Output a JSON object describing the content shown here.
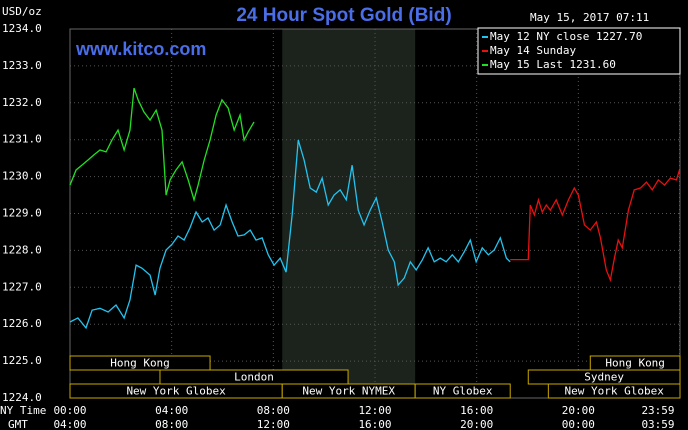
{
  "chart_data": {
    "type": "line",
    "title": "24 Hour Spot Gold (Bid)",
    "unit_label": "USD/oz",
    "timestamp": "May 15, 2017 07:11",
    "watermark": "www.kitco.com",
    "x_axis_label": "NY Time",
    "x2_axis_label": "GMT",
    "xlim": [
      0,
      24
    ],
    "ylim": [
      1224,
      1234
    ],
    "grid": true,
    "legend": "top-right",
    "xticks": [
      {
        "value": 0,
        "label": "00:00"
      },
      {
        "value": 4,
        "label": "04:00"
      },
      {
        "value": 8,
        "label": "08:00"
      },
      {
        "value": 12,
        "label": "12:00"
      },
      {
        "value": 16,
        "label": "16:00"
      },
      {
        "value": 20,
        "label": "20:00"
      },
      {
        "value": 23.98,
        "label": "23:59"
      }
    ],
    "x2ticks": [
      {
        "value": 0,
        "label": "04:00"
      },
      {
        "value": 4,
        "label": "08:00"
      },
      {
        "value": 8,
        "label": "12:00"
      },
      {
        "value": 12,
        "label": "16:00"
      },
      {
        "value": 16,
        "label": "20:00"
      },
      {
        "value": 20,
        "label": "00:00"
      },
      {
        "value": 23.98,
        "label": "03:59"
      }
    ],
    "yticks": [
      {
        "value": 1224,
        "label": "1224.0"
      },
      {
        "value": 1225,
        "label": "1225.0"
      },
      {
        "value": 1226,
        "label": "1226.0"
      },
      {
        "value": 1227,
        "label": "1227.0"
      },
      {
        "value": 1228,
        "label": "1228.0"
      },
      {
        "value": 1229,
        "label": "1229.0"
      },
      {
        "value": 1230,
        "label": "1230.0"
      },
      {
        "value": 1231,
        "label": "1231.0"
      },
      {
        "value": 1232,
        "label": "1232.0"
      },
      {
        "value": 1233,
        "label": "1233.0"
      },
      {
        "value": 1234,
        "label": "1234.0"
      }
    ],
    "series": [
      {
        "name": "May 12 NY close 1227.70",
        "color": "#22c4f0",
        "x": [
          0,
          0.31,
          0.63,
          0.87,
          1.18,
          1.5,
          1.81,
          2.13,
          2.36,
          2.6,
          2.83,
          3.15,
          3.35,
          3.54,
          3.78,
          4.02,
          4.25,
          4.49,
          4.72,
          4.96,
          5.2,
          5.43,
          5.67,
          5.91,
          6.14,
          6.38,
          6.61,
          6.85,
          7.09,
          7.32,
          7.56,
          7.8,
          8.03,
          8.27,
          8.5,
          8.74,
          8.98,
          9.21,
          9.45,
          9.69,
          9.92,
          10.16,
          10.39,
          10.63,
          10.87,
          11.1,
          11.34,
          11.57,
          11.81,
          12.05,
          12.28,
          12.52,
          12.76,
          12.91,
          13.15,
          13.39,
          13.62,
          13.86,
          14.09,
          14.33,
          14.57,
          14.8,
          15.04,
          15.28,
          15.51,
          15.75,
          15.98,
          16.22,
          16.46,
          16.69,
          16.93,
          17.17,
          17.32
        ],
        "values": [
          1226.06,
          1226.17,
          1225.9,
          1226.38,
          1226.43,
          1226.33,
          1226.52,
          1226.17,
          1226.66,
          1227.6,
          1227.52,
          1227.33,
          1226.79,
          1227.52,
          1228.01,
          1228.17,
          1228.39,
          1228.28,
          1228.61,
          1229.04,
          1228.77,
          1228.88,
          1228.55,
          1228.69,
          1229.23,
          1228.77,
          1228.39,
          1228.42,
          1228.55,
          1228.28,
          1228.34,
          1227.88,
          1227.6,
          1227.79,
          1227.41,
          1228.96,
          1230.99,
          1230.45,
          1229.69,
          1229.58,
          1229.96,
          1229.23,
          1229.5,
          1229.64,
          1229.37,
          1230.31,
          1229.09,
          1228.69,
          1229.09,
          1229.42,
          1228.77,
          1228.01,
          1227.69,
          1227.06,
          1227.25,
          1227.69,
          1227.47,
          1227.74,
          1228.07,
          1227.69,
          1227.79,
          1227.69,
          1227.88,
          1227.69,
          1227.96,
          1228.28,
          1227.69,
          1228.07,
          1227.88,
          1228.01,
          1228.34,
          1227.79,
          1227.69
        ]
      },
      {
        "name": "May 14 Sunday",
        "color": "#e81010",
        "x": [
          17.32,
          18.03,
          18.11,
          18.27,
          18.43,
          18.58,
          18.74,
          18.9,
          19.13,
          19.37,
          19.61,
          19.84,
          20,
          20.24,
          20.47,
          20.71,
          20.87,
          21.1,
          21.26,
          21.42,
          21.57,
          21.73,
          21.97,
          22.2,
          22.44,
          22.68,
          22.91,
          23.15,
          23.39,
          23.62,
          23.86,
          23.98
        ],
        "values": [
          1227.75,
          1227.75,
          1229.23,
          1228.96,
          1229.37,
          1229.04,
          1229.23,
          1229.09,
          1229.37,
          1228.96,
          1229.37,
          1229.69,
          1229.5,
          1228.69,
          1228.55,
          1228.77,
          1228.34,
          1227.47,
          1227.2,
          1227.79,
          1228.28,
          1228.07,
          1229.09,
          1229.64,
          1229.69,
          1229.85,
          1229.64,
          1229.91,
          1229.77,
          1229.96,
          1229.91,
          1230.18
        ]
      },
      {
        "name": "May 15 Last 1231.60",
        "color": "#22e022",
        "x": [
          0,
          0.24,
          0.47,
          0.71,
          0.94,
          1.18,
          1.42,
          1.65,
          1.89,
          2.13,
          2.36,
          2.52,
          2.68,
          2.91,
          3.15,
          3.39,
          3.62,
          3.78,
          3.94,
          4.17,
          4.41,
          4.65,
          4.88,
          5.04,
          5.28,
          5.51,
          5.75,
          5.98,
          6.22,
          6.46,
          6.69,
          6.85,
          7.01,
          7.24
        ],
        "values": [
          1229.77,
          1230.18,
          1230.31,
          1230.45,
          1230.59,
          1230.72,
          1230.67,
          1230.99,
          1231.26,
          1230.72,
          1231.26,
          1232.4,
          1232.08,
          1231.75,
          1231.53,
          1231.8,
          1231.26,
          1229.5,
          1229.91,
          1230.18,
          1230.4,
          1229.91,
          1229.37,
          1229.77,
          1230.45,
          1230.99,
          1231.67,
          1232.08,
          1231.86,
          1231.26,
          1231.67,
          1230.99,
          1231.21,
          1231.48
        ]
      }
    ],
    "session_rows": [
      [
        {
          "label": "Hong Kong",
          "start": 0,
          "end": 5.51
        },
        {
          "label": "Hong Kong",
          "start": 20.47,
          "end": 24
        }
      ],
      [
        {
          "label": "London",
          "start": 3.54,
          "end": 10.94
        },
        {
          "label": "Sydney",
          "start": 18.03,
          "end": 24
        }
      ],
      [
        {
          "label": "New York Globex",
          "start": 0,
          "end": 8.35
        },
        {
          "label": "New York NYMEX",
          "start": 8.35,
          "end": 13.58
        },
        {
          "label": "NY Globex",
          "start": 13.58,
          "end": 17.32
        },
        {
          "label": "New York Globex",
          "start": 18.82,
          "end": 24
        }
      ]
    ]
  }
}
